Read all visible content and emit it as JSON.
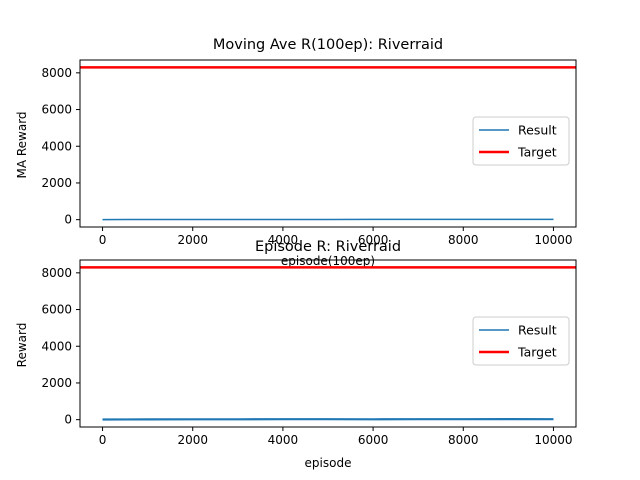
{
  "chart_data": [
    {
      "type": "line",
      "title": "Moving Ave R(100ep): Riverraid",
      "xlabel": "episode(100ep)",
      "ylabel": "MA Reward",
      "xlim": [
        -500,
        10500
      ],
      "ylim": [
        -400,
        8700
      ],
      "xticks": [
        0,
        2000,
        4000,
        6000,
        8000,
        10000
      ],
      "yticks": [
        0,
        2000,
        4000,
        6000,
        8000
      ],
      "grid": false,
      "legend_position": "center-right",
      "series": [
        {
          "name": "Result",
          "color": "#1f77b4",
          "style": "line",
          "x": [
            0,
            1000,
            2000,
            3000,
            4000,
            5000,
            6000,
            7000,
            8000,
            9000,
            10000
          ],
          "y": [
            5,
            6,
            8,
            9,
            10,
            11,
            12,
            13,
            14,
            15,
            16
          ]
        },
        {
          "name": "Target",
          "color": "#ff0000",
          "style": "hline",
          "y": 8300
        }
      ]
    },
    {
      "type": "line",
      "title": "Episode R: Riverraid",
      "xlabel": "episode",
      "ylabel": "Reward",
      "xlim": [
        -500,
        10500
      ],
      "ylim": [
        -400,
        8700
      ],
      "xticks": [
        0,
        2000,
        4000,
        6000,
        8000,
        10000
      ],
      "yticks": [
        0,
        2000,
        4000,
        6000,
        8000
      ],
      "grid": false,
      "legend_position": "center-right",
      "series": [
        {
          "name": "Result",
          "color": "#1f77b4",
          "style": "noisy-line",
          "x": [
            0,
            1000,
            2000,
            3000,
            4000,
            5000,
            6000,
            7000,
            8000,
            9000,
            10000
          ],
          "y": [
            10,
            15,
            20,
            20,
            25,
            25,
            20,
            25,
            25,
            30,
            25
          ]
        },
        {
          "name": "Target",
          "color": "#ff0000",
          "style": "hline",
          "y": 8300
        }
      ]
    }
  ]
}
